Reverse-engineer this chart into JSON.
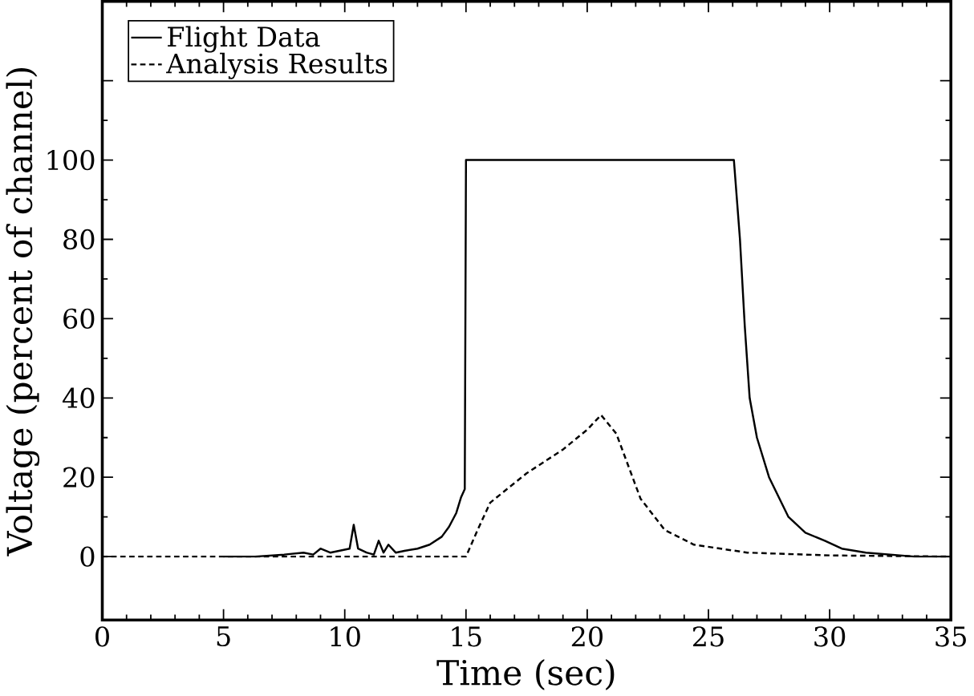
{
  "chart_data": {
    "type": "line",
    "xlabel": "Time (sec)",
    "ylabel": "Voltage (percent of channel)",
    "xlim": [
      0,
      35
    ],
    "xticks": [
      0,
      5,
      10,
      15,
      20,
      25,
      30,
      35
    ],
    "ylim": [
      -16,
      140
    ],
    "yticks": [
      0,
      20,
      40,
      60,
      80,
      100,
      {
        "value": 120,
        "label": null
      }
    ],
    "legend": "top left",
    "series": [
      {
        "name": "Flight Data",
        "color": "#000000",
        "line_style": "solid",
        "x": [
          5.0,
          6.3,
          7.5,
          8.3,
          8.7,
          9.0,
          9.4,
          9.8,
          10.2,
          10.37,
          10.55,
          10.9,
          11.2,
          11.4,
          11.6,
          11.8,
          12.1,
          12.5,
          13.0,
          13.5,
          14.0,
          14.3,
          14.6,
          14.8,
          14.95,
          15.0,
          26.05,
          26.3,
          26.5,
          26.7,
          27.0,
          27.5,
          28.3,
          29.0,
          29.8,
          30.5,
          31.5,
          33.5,
          35.0
        ],
        "values": [
          0,
          0,
          0.5,
          1,
          0.5,
          2,
          1,
          1.5,
          2,
          8,
          2,
          1,
          0.5,
          4,
          1,
          3,
          1,
          1.5,
          2,
          3,
          5,
          7.5,
          11,
          15,
          17,
          100,
          100,
          80,
          58,
          40,
          30,
          20,
          10,
          6,
          4,
          2,
          1,
          0,
          0
        ]
      },
      {
        "name": "Analysis Results",
        "color": "#000000",
        "line_style": "dashed",
        "x": [
          0,
          15.0,
          15.5,
          16.0,
          17.5,
          19.0,
          20.0,
          20.57,
          21.2,
          22.2,
          23.2,
          24.4,
          26.6,
          30.0,
          35.0
        ],
        "values": [
          0,
          0,
          7,
          13.6,
          21,
          27,
          32,
          35.7,
          31,
          14.6,
          6.7,
          3,
          1,
          0.3,
          0
        ]
      }
    ]
  }
}
